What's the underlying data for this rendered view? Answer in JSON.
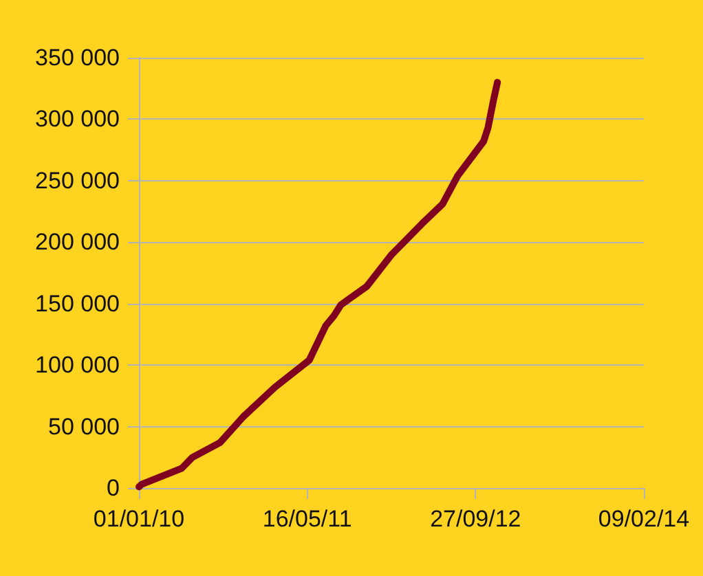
{
  "chart_data": {
    "type": "line",
    "x": [
      "2010-01-01",
      "2010-01-09",
      "2010-05-08",
      "2010-06-09",
      "2010-08-30",
      "2010-11-07",
      "2011-02-09",
      "2011-05-22",
      "2011-07-10",
      "2011-08-03",
      "2011-08-24",
      "2011-11-09",
      "2012-01-22",
      "2012-04-21",
      "2012-06-21",
      "2012-08-05",
      "2012-10-21",
      "2012-11-03",
      "2012-11-19",
      "2012-12-01"
    ],
    "series": [
      {
        "color": "#800020",
        "values": [
          1000,
          3000,
          16000,
          25000,
          37000,
          58000,
          82000,
          104000,
          132000,
          140000,
          149000,
          164000,
          190000,
          215000,
          231000,
          254000,
          282000,
          293000,
          315000,
          330000
        ]
      }
    ],
    "xlim": [
      "2010-01-01",
      "2014-02-09"
    ],
    "xticks": [
      {
        "value": "2010-01-01",
        "label": "01/01/10"
      },
      {
        "value": "2011-05-16",
        "label": "16/05/11"
      },
      {
        "value": "2012-09-27",
        "label": "27/09/12"
      },
      {
        "value": "2014-02-09",
        "label": "09/02/14"
      }
    ],
    "ylim": [
      0,
      350000
    ],
    "yticks": [
      {
        "value": 0,
        "label": "0"
      },
      {
        "value": 50000,
        "label": "50 000"
      },
      {
        "value": 100000,
        "label": "100 000"
      },
      {
        "value": 150000,
        "label": "150 000"
      },
      {
        "value": 200000,
        "label": "200 000"
      },
      {
        "value": 250000,
        "label": "250 000"
      },
      {
        "value": 300000,
        "label": "300 000"
      },
      {
        "value": 350000,
        "label": "350 000"
      }
    ],
    "grid": "y",
    "marker": "none",
    "line_style": "solid"
  }
}
